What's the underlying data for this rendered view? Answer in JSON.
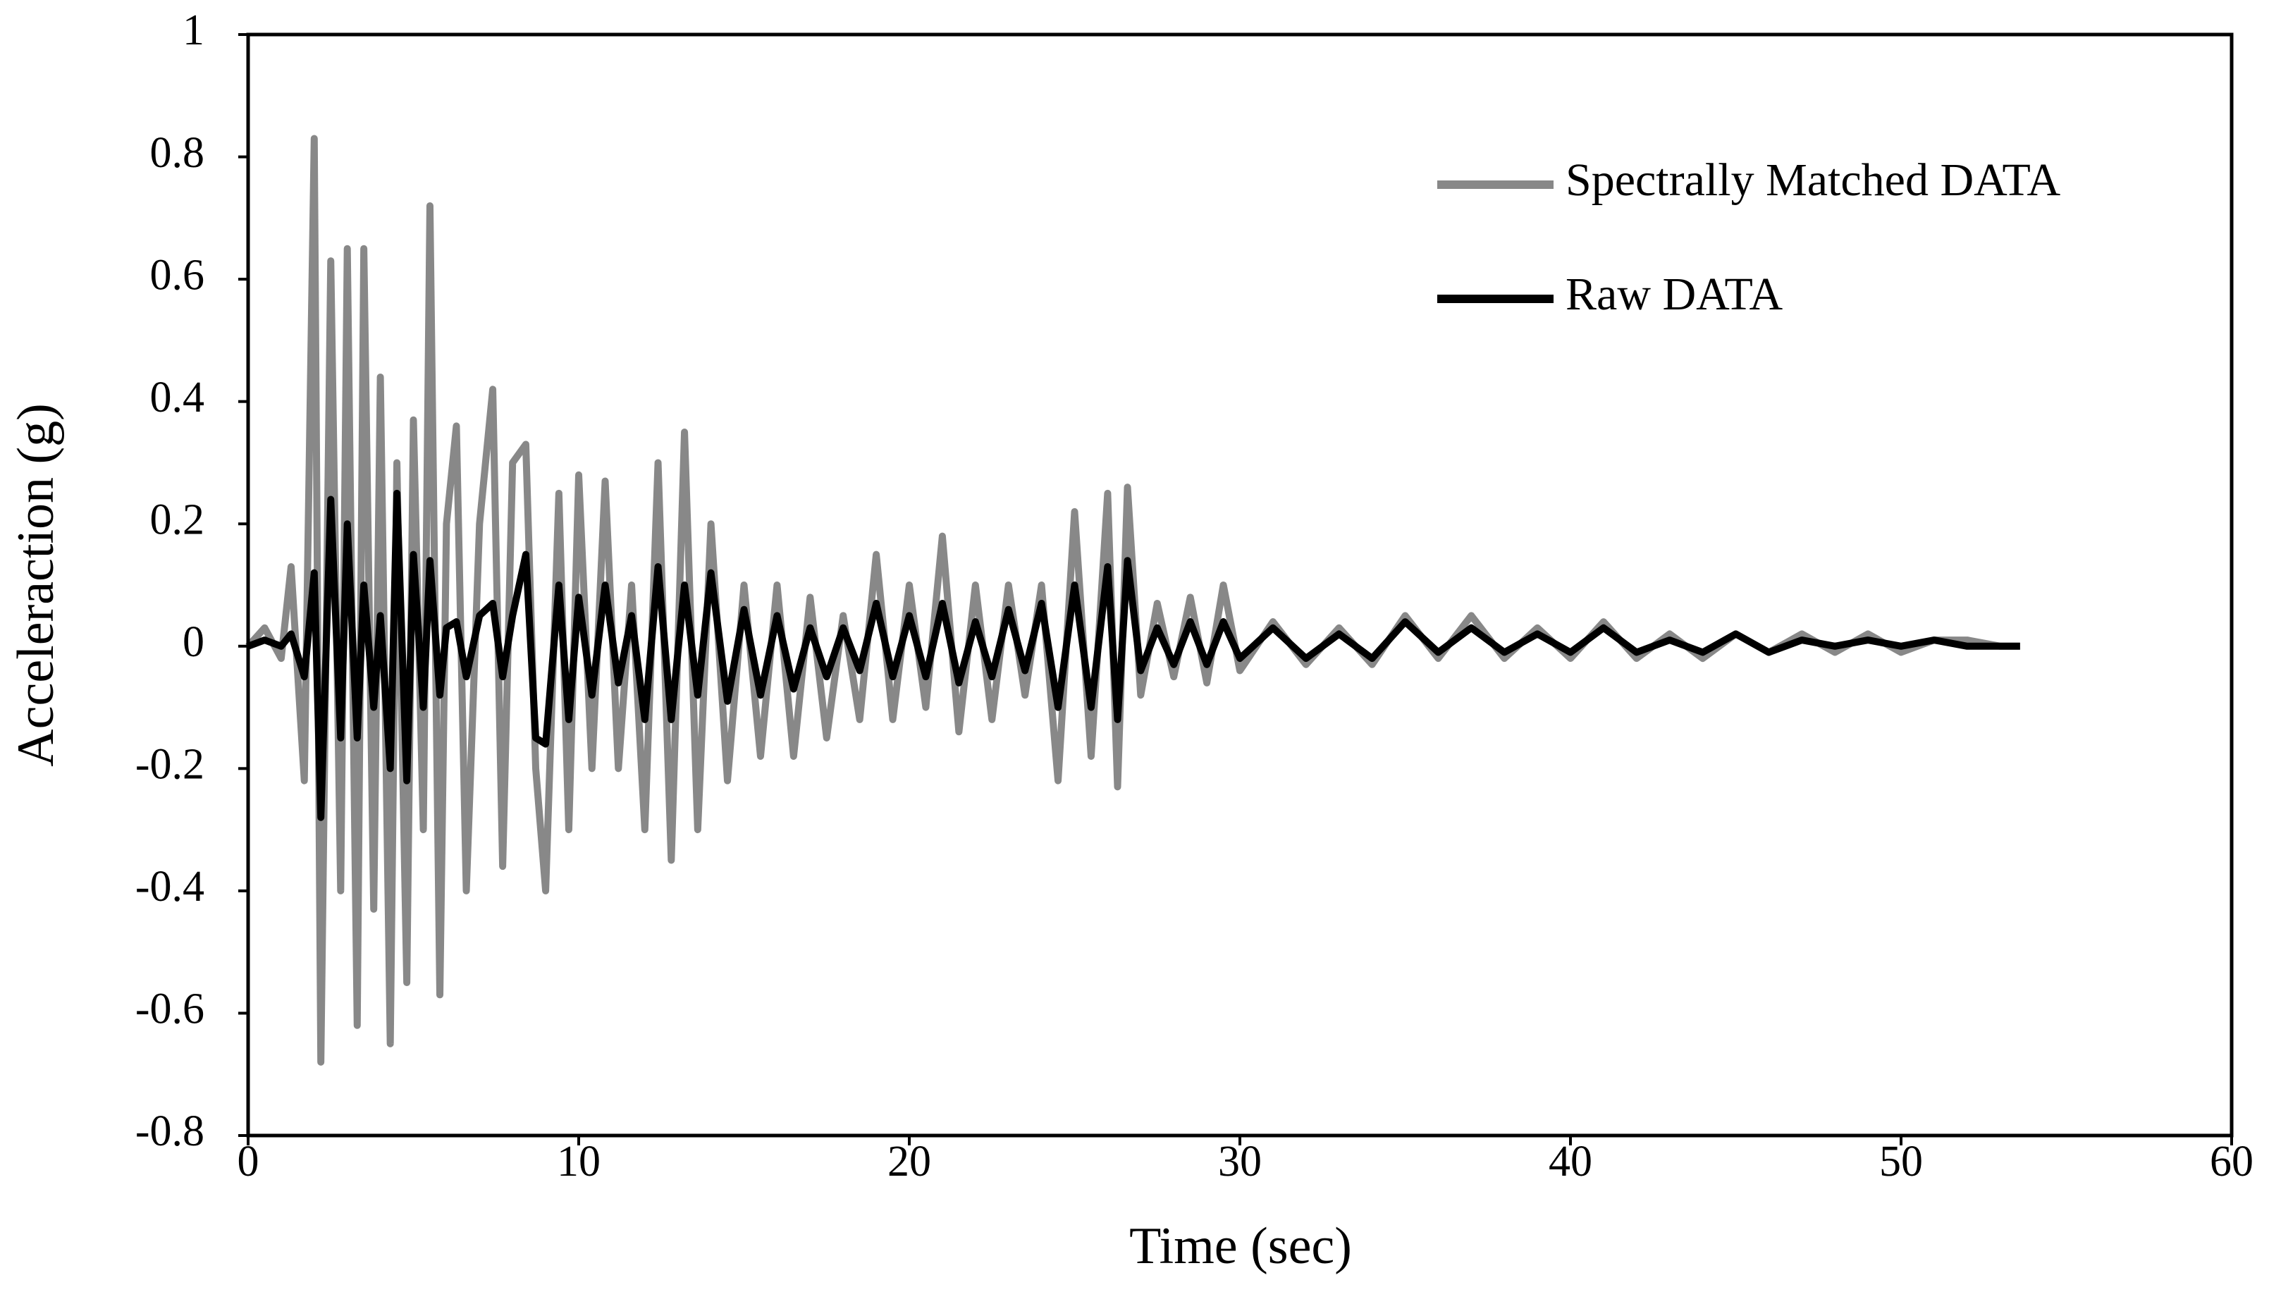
{
  "chart_data": {
    "type": "line",
    "x_label": "Time (sec)",
    "y_label": "Acceleraction (g)",
    "xlim": [
      0,
      60
    ],
    "xticks": [
      0,
      10,
      20,
      30,
      40,
      50,
      60
    ],
    "ylim": [
      -0.8,
      1
    ],
    "yticks": [
      -0.8,
      -0.6,
      -0.4,
      -0.2,
      0,
      0.2,
      0.4,
      0.6,
      0.8,
      1
    ],
    "grid": false,
    "legend": "upper right",
    "x": [
      0,
      0.5,
      1,
      1.3,
      1.7,
      2,
      2.2,
      2.5,
      2.8,
      3,
      3.3,
      3.5,
      3.8,
      4,
      4.3,
      4.5,
      4.8,
      5,
      5.3,
      5.5,
      5.8,
      6,
      6.3,
      6.6,
      7,
      7.4,
      7.7,
      8,
      8.4,
      8.7,
      9,
      9.4,
      9.7,
      10,
      10.4,
      10.8,
      11.2,
      11.6,
      12,
      12.4,
      12.8,
      13.2,
      13.6,
      14,
      14.5,
      15,
      15.5,
      16,
      16.5,
      17,
      17.5,
      18,
      18.5,
      19,
      19.5,
      20,
      20.5,
      21,
      21.5,
      22,
      22.5,
      23,
      23.5,
      24,
      24.5,
      25,
      25.5,
      26,
      26.3,
      26.6,
      27,
      27.5,
      28,
      28.5,
      29,
      29.5,
      30,
      31,
      32,
      33,
      34,
      35,
      36,
      37,
      38,
      39,
      40,
      41,
      42,
      43,
      44,
      45,
      46,
      47,
      48,
      49,
      50,
      51,
      52,
      53,
      53.6
    ],
    "series": [
      {
        "name": "Spectrally Matched DATA",
        "color": "#888888",
        "values": [
          0,
          0.03,
          -0.02,
          0.13,
          -0.22,
          0.83,
          -0.68,
          0.63,
          -0.4,
          0.65,
          -0.62,
          0.65,
          -0.43,
          0.44,
          -0.65,
          0.3,
          -0.55,
          0.37,
          -0.3,
          0.72,
          -0.57,
          0.2,
          0.36,
          -0.4,
          0.2,
          0.42,
          -0.36,
          0.3,
          0.33,
          -0.2,
          -0.4,
          0.25,
          -0.3,
          0.28,
          -0.2,
          0.27,
          -0.2,
          0.1,
          -0.3,
          0.3,
          -0.35,
          0.35,
          -0.3,
          0.2,
          -0.22,
          0.1,
          -0.18,
          0.1,
          -0.18,
          0.08,
          -0.15,
          0.05,
          -0.12,
          0.15,
          -0.12,
          0.1,
          -0.1,
          0.18,
          -0.14,
          0.1,
          -0.12,
          0.1,
          -0.08,
          0.1,
          -0.22,
          0.22,
          -0.18,
          0.25,
          -0.23,
          0.26,
          -0.08,
          0.07,
          -0.05,
          0.08,
          -0.06,
          0.1,
          -0.04,
          0.04,
          -0.03,
          0.03,
          -0.03,
          0.05,
          -0.02,
          0.05,
          -0.02,
          0.03,
          -0.02,
          0.04,
          -0.02,
          0.02,
          -0.02,
          0.02,
          -0.01,
          0.02,
          -0.01,
          0.02,
          -0.01,
          0.01,
          0.01,
          0,
          0
        ]
      },
      {
        "name": "Raw DATA",
        "color": "#000000",
        "values": [
          0,
          0.01,
          0,
          0.02,
          -0.05,
          0.12,
          -0.28,
          0.24,
          -0.15,
          0.2,
          -0.15,
          0.1,
          -0.1,
          0.05,
          -0.2,
          0.25,
          -0.22,
          0.15,
          -0.1,
          0.14,
          -0.08,
          0.03,
          0.04,
          -0.05,
          0.05,
          0.07,
          -0.05,
          0.05,
          0.15,
          -0.15,
          -0.16,
          0.1,
          -0.12,
          0.08,
          -0.08,
          0.1,
          -0.06,
          0.05,
          -0.12,
          0.13,
          -0.12,
          0.1,
          -0.08,
          0.12,
          -0.09,
          0.06,
          -0.08,
          0.05,
          -0.07,
          0.03,
          -0.05,
          0.03,
          -0.04,
          0.07,
          -0.05,
          0.05,
          -0.05,
          0.07,
          -0.06,
          0.04,
          -0.05,
          0.06,
          -0.04,
          0.07,
          -0.1,
          0.1,
          -0.1,
          0.13,
          -0.12,
          0.14,
          -0.04,
          0.03,
          -0.03,
          0.04,
          -0.03,
          0.04,
          -0.02,
          0.03,
          -0.02,
          0.02,
          -0.02,
          0.04,
          -0.01,
          0.03,
          -0.01,
          0.02,
          -0.01,
          0.03,
          -0.01,
          0.01,
          -0.01,
          0.02,
          -0.01,
          0.01,
          0,
          0.01,
          0,
          0.01,
          0,
          0,
          0
        ]
      }
    ]
  }
}
